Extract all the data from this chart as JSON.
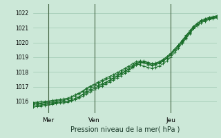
{
  "bg_color": "#cce8d8",
  "grid_color": "#9ec8b0",
  "line_color": "#1a6e2a",
  "vline_color": "#446644",
  "title": "Pression niveau de la mer( hPa )",
  "ylabel_ticks": [
    1016,
    1017,
    1018,
    1019,
    1020,
    1021,
    1022
  ],
  "ylim": [
    1015.2,
    1022.6
  ],
  "xlim": [
    0,
    48
  ],
  "x_day_labels": [
    [
      "Mer",
      4
    ],
    [
      "Ven",
      16
    ],
    [
      "Jeu",
      36
    ]
  ],
  "x_day_vlines": [
    4,
    16,
    36
  ],
  "series": [
    [
      1015.8,
      1015.82,
      1015.85,
      1015.88,
      1015.9,
      1015.92,
      1015.95,
      1015.98,
      1016.0,
      1016.02,
      1016.1,
      1016.2,
      1016.3,
      1016.5,
      1016.7,
      1016.85,
      1017.0,
      1017.1,
      1017.2,
      1017.3,
      1017.45,
      1017.6,
      1017.75,
      1017.9,
      1018.05,
      1018.2,
      1018.35,
      1018.5,
      1018.5,
      1018.4,
      1018.3,
      1018.25,
      1018.3,
      1018.4,
      1018.55,
      1018.75,
      1019.0,
      1019.3,
      1019.6,
      1019.95,
      1020.25,
      1020.6,
      1020.95,
      1021.15,
      1021.35,
      1021.5,
      1021.6,
      1021.65,
      1021.7
    ],
    [
      1015.85,
      1015.88,
      1015.9,
      1015.93,
      1015.97,
      1016.0,
      1016.03,
      1016.07,
      1016.1,
      1016.15,
      1016.25,
      1016.38,
      1016.5,
      1016.65,
      1016.85,
      1016.98,
      1017.1,
      1017.22,
      1017.35,
      1017.48,
      1017.6,
      1017.72,
      1017.85,
      1018.0,
      1018.15,
      1018.3,
      1018.45,
      1018.6,
      1018.65,
      1018.6,
      1018.5,
      1018.45,
      1018.48,
      1018.58,
      1018.72,
      1018.92,
      1019.15,
      1019.45,
      1019.72,
      1020.05,
      1020.38,
      1020.7,
      1021.05,
      1021.25,
      1021.45,
      1021.55,
      1021.65,
      1021.7,
      1021.78
    ],
    [
      1015.92,
      1015.95,
      1015.98,
      1016.0,
      1016.03,
      1016.07,
      1016.1,
      1016.13,
      1016.17,
      1016.22,
      1016.32,
      1016.45,
      1016.58,
      1016.72,
      1016.9,
      1017.05,
      1017.18,
      1017.32,
      1017.45,
      1017.58,
      1017.7,
      1017.82,
      1017.95,
      1018.1,
      1018.25,
      1018.4,
      1018.55,
      1018.7,
      1018.75,
      1018.72,
      1018.62,
      1018.55,
      1018.58,
      1018.68,
      1018.82,
      1019.02,
      1019.25,
      1019.55,
      1019.82,
      1020.15,
      1020.48,
      1020.8,
      1021.12,
      1021.32,
      1021.5,
      1021.62,
      1021.7,
      1021.75,
      1021.82
    ],
    [
      1015.7,
      1015.73,
      1015.77,
      1015.8,
      1015.83,
      1015.87,
      1015.92,
      1015.95,
      1015.98,
      1016.02,
      1016.1,
      1016.2,
      1016.32,
      1016.45,
      1016.6,
      1016.75,
      1016.88,
      1017.02,
      1017.15,
      1017.28,
      1017.42,
      1017.55,
      1017.7,
      1017.85,
      1018.0,
      1018.18,
      1018.38,
      1018.58,
      1018.72,
      1018.75,
      1018.65,
      1018.58,
      1018.6,
      1018.7,
      1018.85,
      1019.05,
      1019.28,
      1019.55,
      1019.82,
      1020.12,
      1020.42,
      1020.72,
      1021.05,
      1021.25,
      1021.45,
      1021.55,
      1021.62,
      1021.68,
      1021.75
    ],
    [
      1015.62,
      1015.65,
      1015.68,
      1015.72,
      1015.75,
      1015.8,
      1015.85,
      1015.88,
      1015.92,
      1015.95,
      1016.02,
      1016.12,
      1016.22,
      1016.35,
      1016.5,
      1016.65,
      1016.78,
      1016.92,
      1017.05,
      1017.18,
      1017.32,
      1017.45,
      1017.6,
      1017.75,
      1017.9,
      1018.08,
      1018.28,
      1018.48,
      1018.62,
      1018.65,
      1018.55,
      1018.48,
      1018.5,
      1018.6,
      1018.75,
      1018.95,
      1019.18,
      1019.45,
      1019.72,
      1020.02,
      1020.32,
      1020.62,
      1020.95,
      1021.15,
      1021.35,
      1021.45,
      1021.55,
      1021.6,
      1021.68
    ]
  ]
}
